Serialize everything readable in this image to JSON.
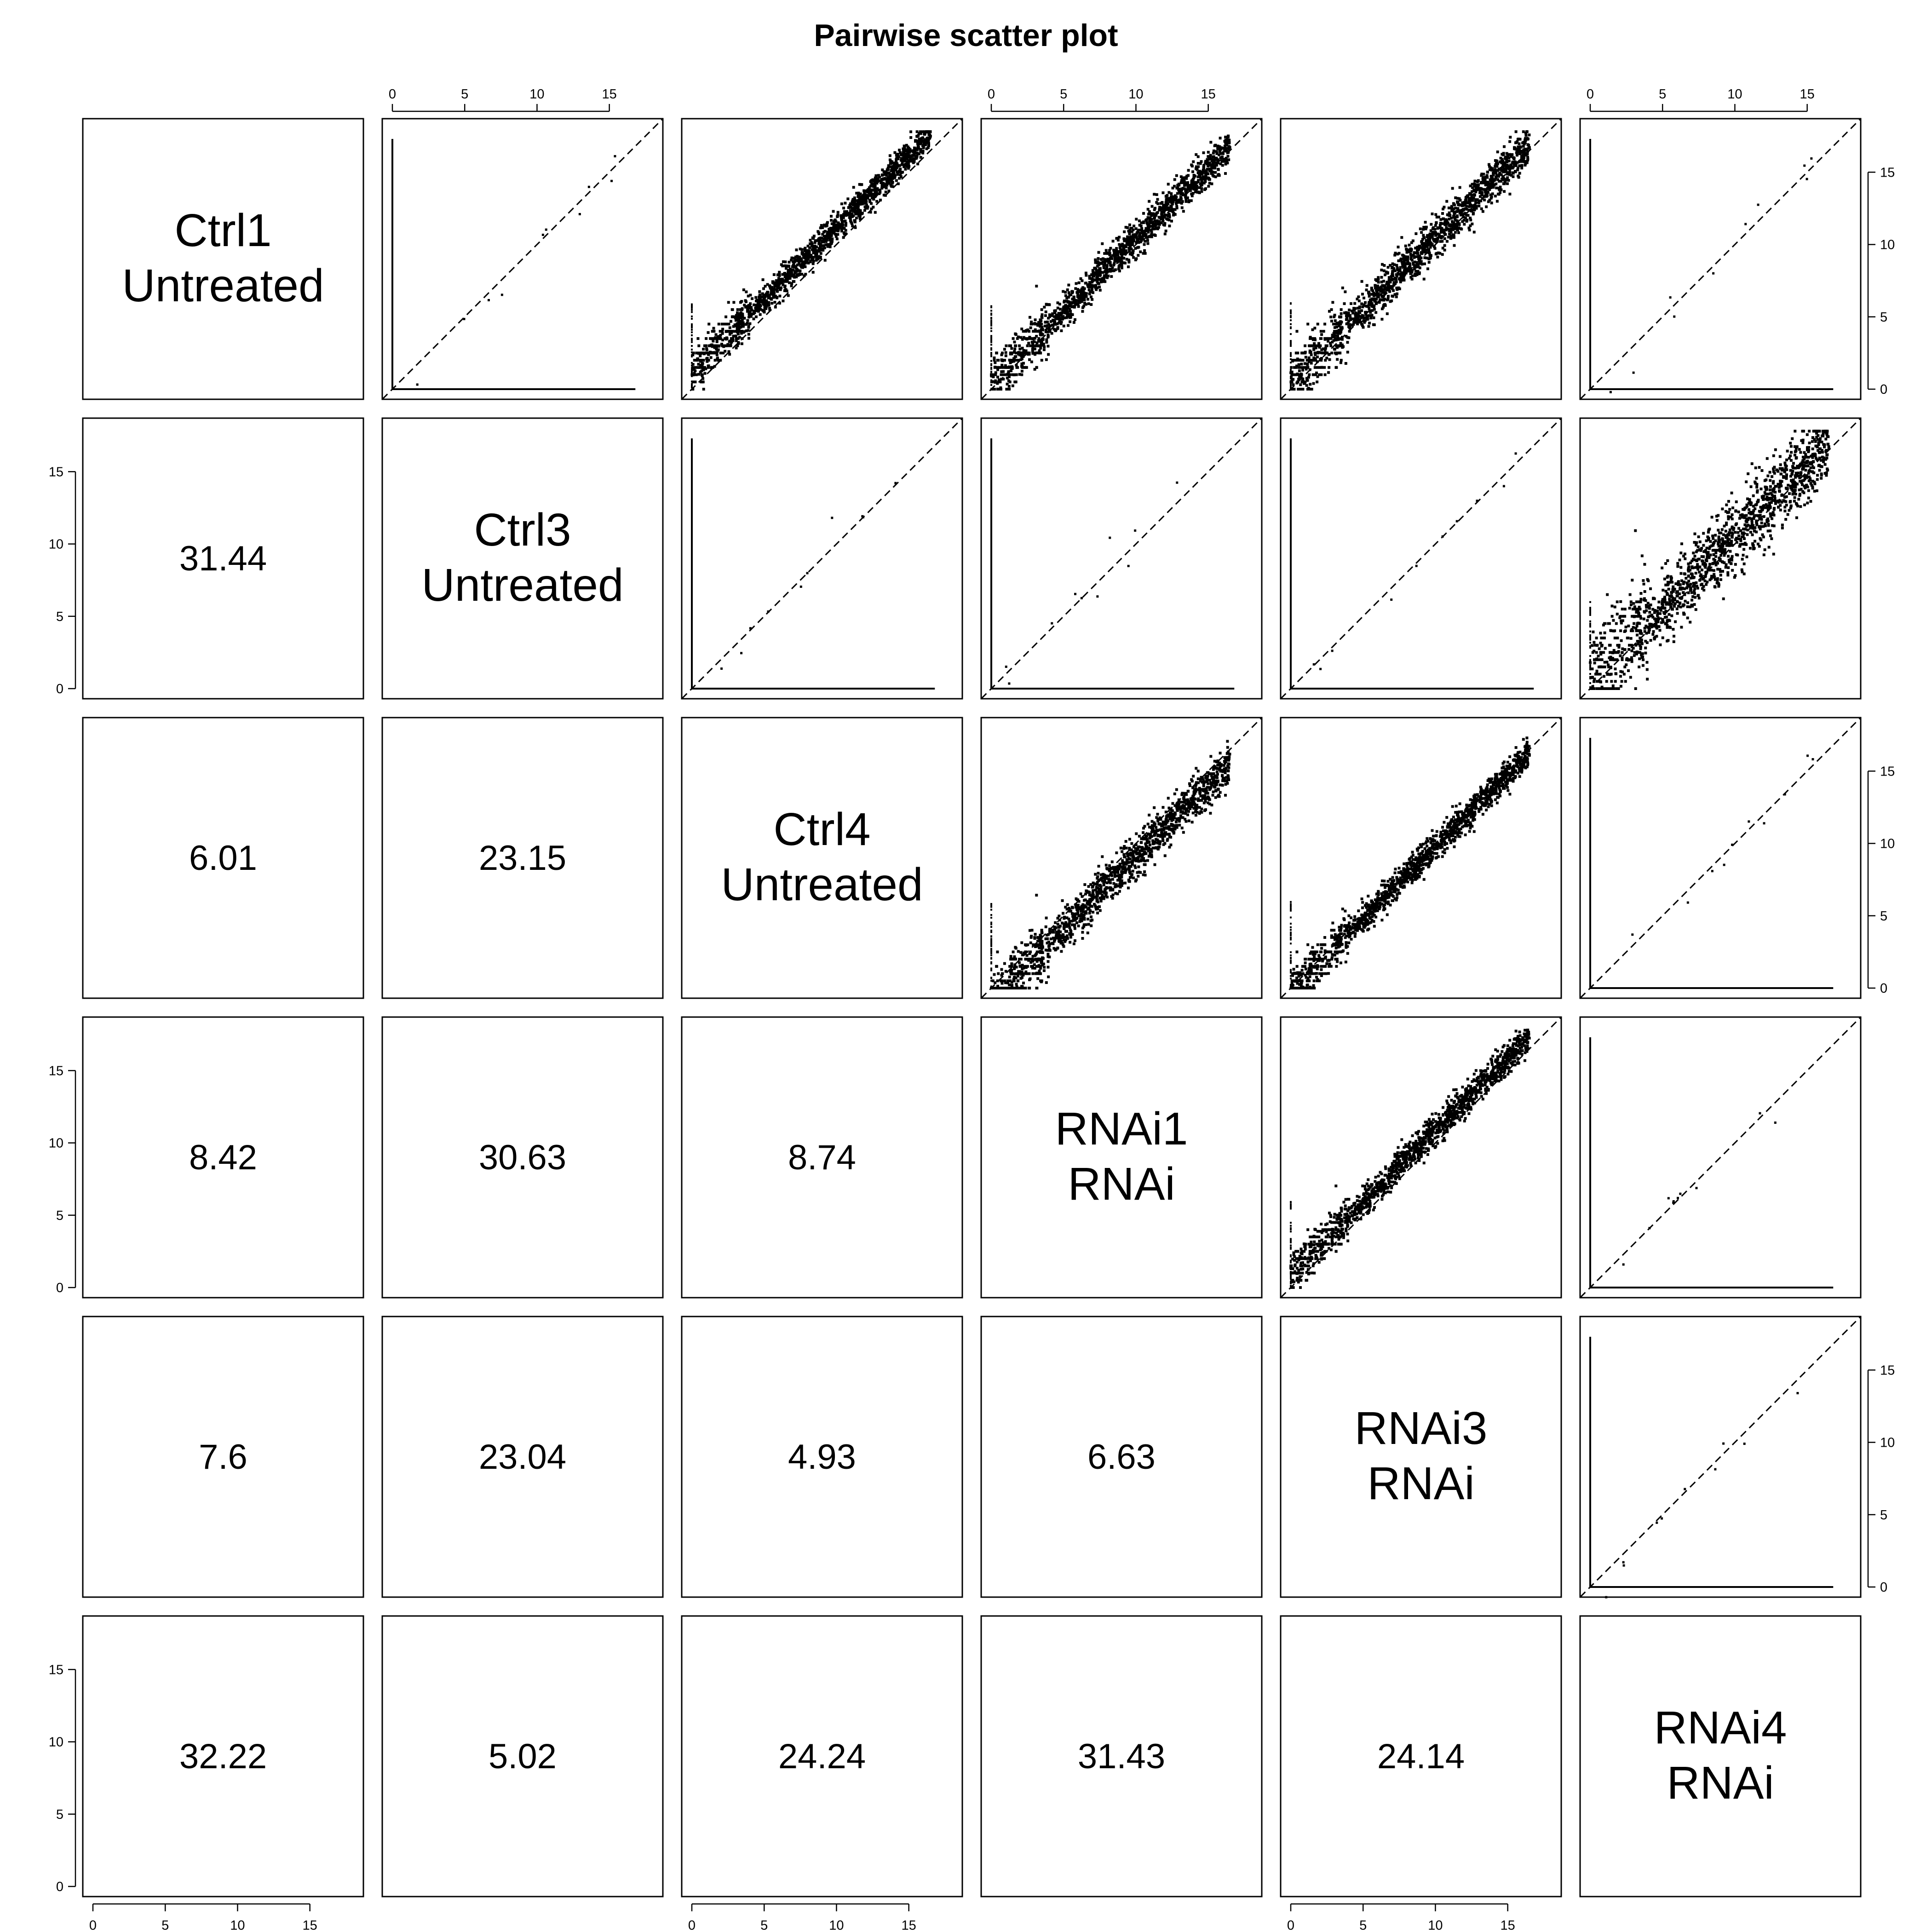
{
  "title": "Pairwise scatter plot",
  "chart_data": {
    "type": "scatter",
    "title": "Pairwise scatter plot",
    "samples": [
      {
        "name": "Ctrl1",
        "group": "Untreated"
      },
      {
        "name": "Ctrl3",
        "group": "Untreated"
      },
      {
        "name": "Ctrl4",
        "group": "Untreated"
      },
      {
        "name": "RNAi1",
        "group": "RNAi"
      },
      {
        "name": "RNAi3",
        "group": "RNAi"
      },
      {
        "name": "RNAi4",
        "group": "RNAi"
      }
    ],
    "axis_range": [
      0,
      18
    ],
    "axis_ticks": [
      0,
      5,
      10,
      15
    ],
    "reference_line": "y = x (dashed)",
    "lower_panel_values": [
      {
        "row": 1,
        "col": 0,
        "value": "31.44"
      },
      {
        "row": 2,
        "col": 0,
        "value": "6.01"
      },
      {
        "row": 2,
        "col": 1,
        "value": "23.15"
      },
      {
        "row": 3,
        "col": 0,
        "value": "8.42"
      },
      {
        "row": 3,
        "col": 1,
        "value": "30.63"
      },
      {
        "row": 3,
        "col": 2,
        "value": "8.74"
      },
      {
        "row": 4,
        "col": 0,
        "value": "7.6"
      },
      {
        "row": 4,
        "col": 1,
        "value": "23.04"
      },
      {
        "row": 4,
        "col": 2,
        "value": "4.93"
      },
      {
        "row": 4,
        "col": 3,
        "value": "6.63"
      },
      {
        "row": 5,
        "col": 0,
        "value": "32.22"
      },
      {
        "row": 5,
        "col": 1,
        "value": "5.02"
      },
      {
        "row": 5,
        "col": 2,
        "value": "24.24"
      },
      {
        "row": 5,
        "col": 3,
        "value": "31.43"
      },
      {
        "row": 5,
        "col": 4,
        "value": "24.14"
      }
    ],
    "upper_panels": [
      {
        "row": 0,
        "col": 1,
        "pattern": "axes",
        "offset": 0,
        "spread": 0
      },
      {
        "row": 0,
        "col": 2,
        "pattern": "cloud",
        "offset": 1.2,
        "spread": 0.5
      },
      {
        "row": 0,
        "col": 3,
        "pattern": "cloud",
        "offset": 0.4,
        "spread": 0.6
      },
      {
        "row": 0,
        "col": 4,
        "pattern": "cloud",
        "offset": 0.5,
        "spread": 0.7
      },
      {
        "row": 0,
        "col": 5,
        "pattern": "axes",
        "offset": 0,
        "spread": 0
      },
      {
        "row": 1,
        "col": 2,
        "pattern": "axes",
        "offset": 0,
        "spread": 0
      },
      {
        "row": 1,
        "col": 3,
        "pattern": "axes",
        "offset": 0,
        "spread": 0
      },
      {
        "row": 1,
        "col": 4,
        "pattern": "axes",
        "offset": 0,
        "spread": 0
      },
      {
        "row": 1,
        "col": 5,
        "pattern": "cloud",
        "offset": 0.6,
        "spread": 1.2
      },
      {
        "row": 2,
        "col": 3,
        "pattern": "cloud",
        "offset": -0.9,
        "spread": 0.7
      },
      {
        "row": 2,
        "col": 4,
        "pattern": "cloud",
        "offset": -0.2,
        "spread": 0.5
      },
      {
        "row": 2,
        "col": 5,
        "pattern": "axes",
        "offset": 0,
        "spread": 0
      },
      {
        "row": 3,
        "col": 4,
        "pattern": "cloud",
        "offset": 0.9,
        "spread": 0.5
      },
      {
        "row": 3,
        "col": 5,
        "pattern": "axes",
        "offset": 0,
        "spread": 0
      },
      {
        "row": 4,
        "col": 5,
        "pattern": "axes",
        "offset": 0,
        "spread": 0
      }
    ]
  }
}
